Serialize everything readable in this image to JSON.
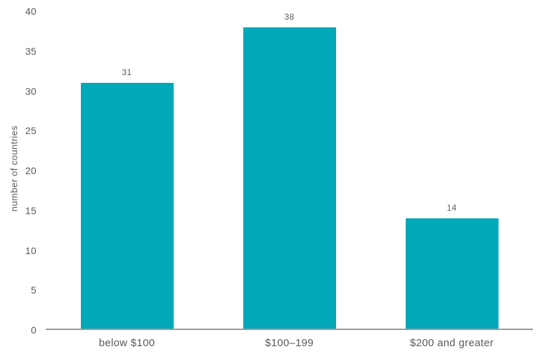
{
  "chart_data": {
    "type": "bar",
    "categories": [
      "below $100",
      "$100–199",
      "$200 and greater"
    ],
    "values": [
      31,
      38,
      14
    ],
    "title": "",
    "xlabel": "",
    "ylabel": "number of countries",
    "ylim": [
      0,
      40
    ],
    "yticks": [
      0,
      5,
      10,
      15,
      20,
      25,
      30,
      35,
      40
    ],
    "grid": false,
    "legend": "none",
    "bar_color": "#00a8b8",
    "axis_color": "#9b9b9b",
    "text_color": "#58595b"
  }
}
